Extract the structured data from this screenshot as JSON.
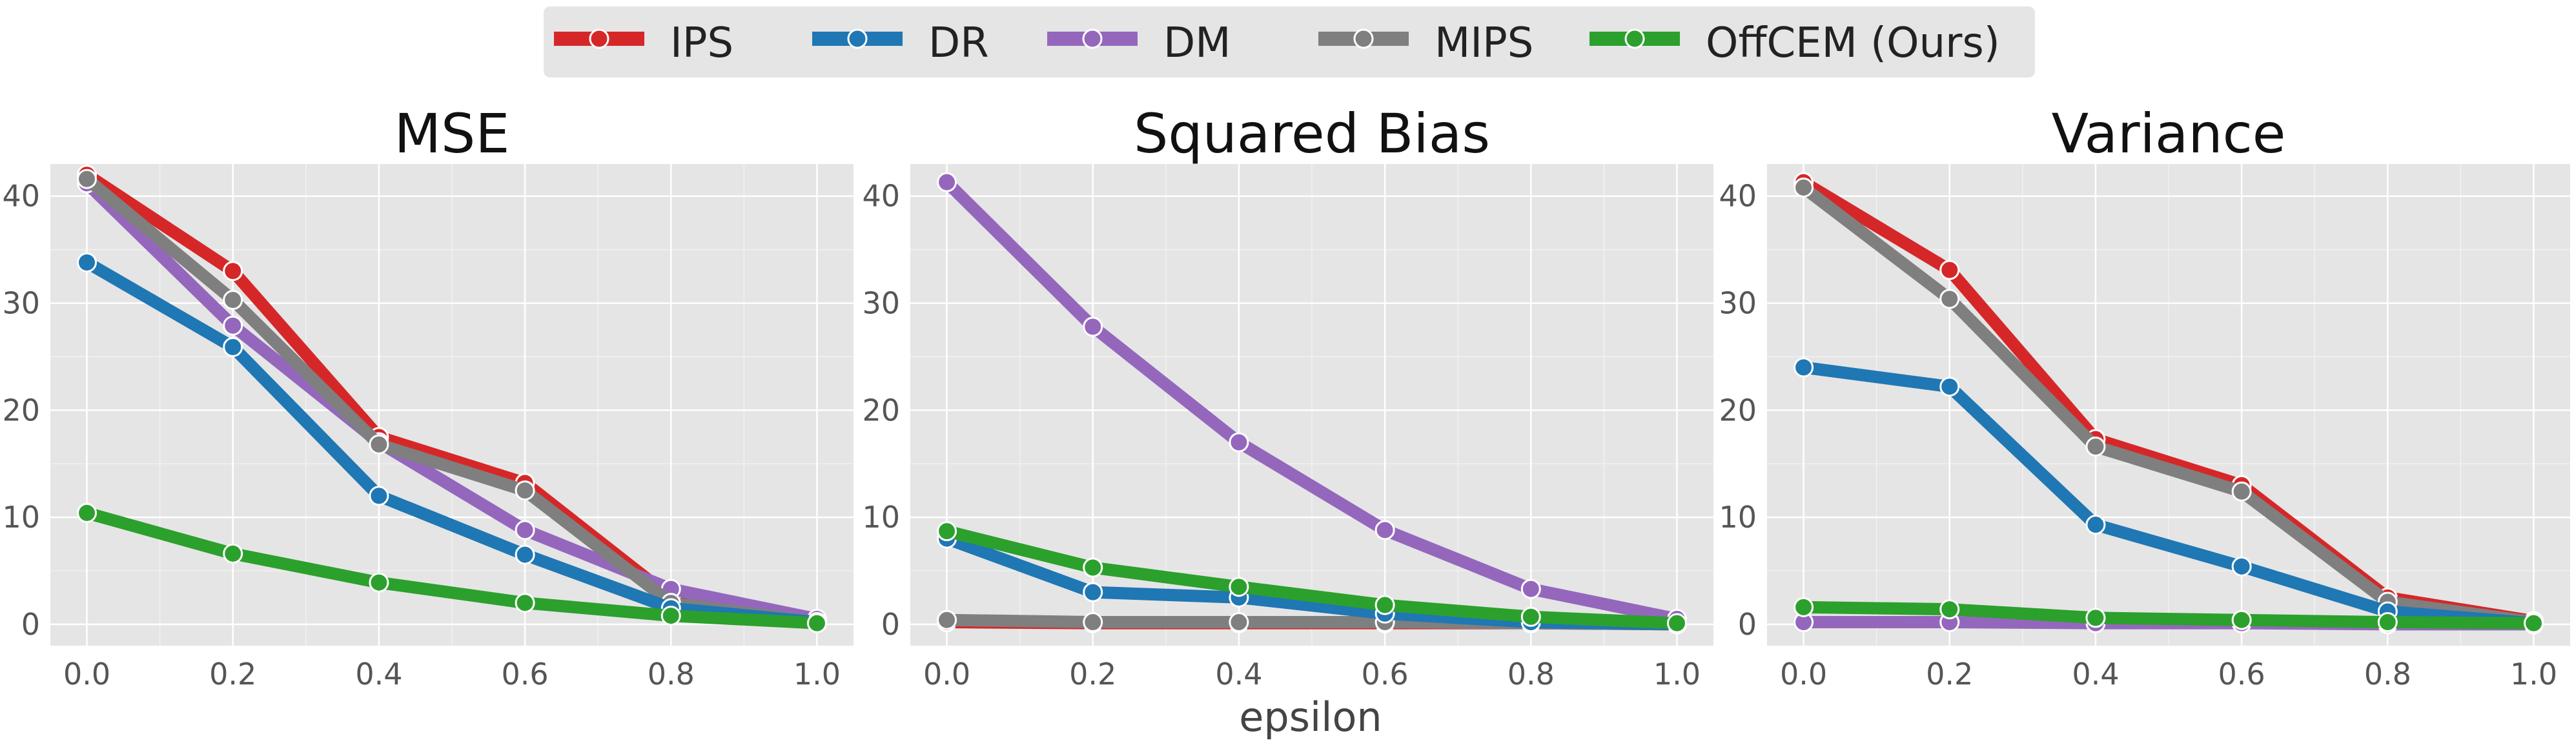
{
  "legend": [
    {
      "name": "IPS",
      "color": "#d62728"
    },
    {
      "name": "DR",
      "color": "#1f77b4"
    },
    {
      "name": "DM",
      "color": "#9467bd"
    },
    {
      "name": "MIPS",
      "color": "#7f7f7f"
    },
    {
      "name": "OffCEM (Ours)",
      "color": "#2ca02c"
    }
  ],
  "xlabel": "epsilon",
  "chart_data": [
    {
      "type": "line",
      "title": "MSE",
      "x": [
        0.0,
        0.2,
        0.4,
        0.6,
        0.8,
        1.0
      ],
      "xticks": [
        "0.0",
        "0.2",
        "0.4",
        "0.6",
        "0.8",
        "1.0"
      ],
      "yticks": [
        "0",
        "10",
        "20",
        "30",
        "40"
      ],
      "ylim": [
        -2,
        43
      ],
      "grid": true,
      "series": [
        {
          "name": "IPS",
          "values": [
            42.0,
            33.0,
            17.5,
            13.2,
            2.5,
            0.3
          ]
        },
        {
          "name": "DR",
          "values": [
            33.8,
            25.9,
            12.0,
            6.5,
            1.5,
            0.2
          ]
        },
        {
          "name": "DM",
          "values": [
            41.2,
            27.9,
            17.0,
            8.8,
            3.3,
            0.5
          ]
        },
        {
          "name": "MIPS",
          "values": [
            41.6,
            30.3,
            16.8,
            12.5,
            2.0,
            0.2
          ]
        },
        {
          "name": "OffCEM (Ours)",
          "values": [
            10.4,
            6.6,
            3.9,
            2.0,
            0.8,
            0.1
          ]
        }
      ]
    },
    {
      "type": "line",
      "title": "Squared Bias",
      "x": [
        0.0,
        0.2,
        0.4,
        0.6,
        0.8,
        1.0
      ],
      "xticks": [
        "0.0",
        "0.2",
        "0.4",
        "0.6",
        "0.8",
        "1.0"
      ],
      "yticks": [
        "0",
        "10",
        "20",
        "30",
        "40"
      ],
      "ylim": [
        -2,
        43
      ],
      "grid": true,
      "series": [
        {
          "name": "IPS",
          "values": [
            0.2,
            0.1,
            0.1,
            0.1,
            0.1,
            0.0
          ]
        },
        {
          "name": "DR",
          "values": [
            8.0,
            3.0,
            2.5,
            1.0,
            0.2,
            0.0
          ]
        },
        {
          "name": "DM",
          "values": [
            41.3,
            27.8,
            17.0,
            8.8,
            3.3,
            0.5
          ]
        },
        {
          "name": "MIPS",
          "values": [
            0.4,
            0.2,
            0.2,
            0.2,
            0.1,
            0.0
          ]
        },
        {
          "name": "OffCEM (Ours)",
          "values": [
            8.7,
            5.3,
            3.5,
            1.8,
            0.7,
            0.1
          ]
        }
      ]
    },
    {
      "type": "line",
      "title": "Variance",
      "x": [
        0.0,
        0.2,
        0.4,
        0.6,
        0.8,
        1.0
      ],
      "xticks": [
        "0.0",
        "0.2",
        "0.4",
        "0.6",
        "0.8",
        "1.0"
      ],
      "yticks": [
        "0",
        "10",
        "20",
        "30",
        "40"
      ],
      "ylim": [
        -2,
        43
      ],
      "grid": true,
      "series": [
        {
          "name": "IPS",
          "values": [
            41.3,
            33.1,
            17.3,
            13.0,
            2.5,
            0.3
          ]
        },
        {
          "name": "DR",
          "values": [
            24.0,
            22.2,
            9.3,
            5.4,
            1.2,
            0.1
          ]
        },
        {
          "name": "DM",
          "values": [
            0.2,
            0.2,
            0.1,
            0.1,
            0.0,
            0.0
          ]
        },
        {
          "name": "MIPS",
          "values": [
            40.8,
            30.4,
            16.6,
            12.4,
            2.1,
            0.2
          ]
        },
        {
          "name": "OffCEM (Ours)",
          "values": [
            1.6,
            1.4,
            0.6,
            0.4,
            0.2,
            0.1
          ]
        }
      ]
    }
  ]
}
